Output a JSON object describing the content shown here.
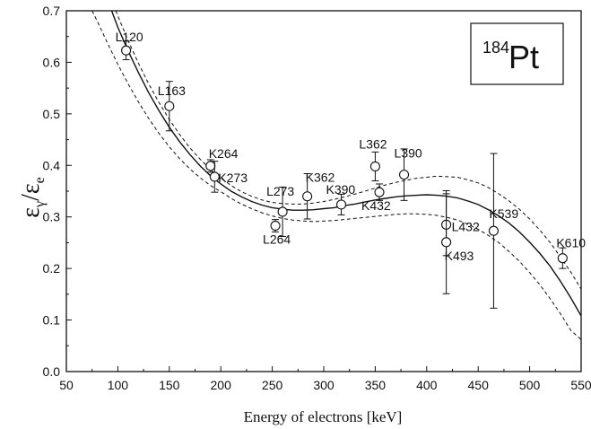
{
  "chart_data": {
    "type": "scatter",
    "xlabel": "Energy of electrons [keV]",
    "ylabel": {
      "main": "ε",
      "sub1": "γ",
      "sep": "/",
      "main2": "ε",
      "sub2": "e"
    },
    "xlim": [
      50,
      550
    ],
    "ylim": [
      0.0,
      0.7
    ],
    "xticks": [
      "50",
      "100",
      "150",
      "200",
      "250",
      "300",
      "350",
      "400",
      "450",
      "500",
      "550"
    ],
    "yticks": [
      "0.0",
      "0.1",
      "0.2",
      "0.3",
      "0.4",
      "0.5",
      "0.6",
      "0.7"
    ],
    "grid": false,
    "annotation": {
      "mass": "184",
      "element": "Pt"
    },
    "points": [
      {
        "label": "L120",
        "x": 108,
        "y": 0.623,
        "err": 0.018
      },
      {
        "label": "L163",
        "x": 150,
        "y": 0.515,
        "err": 0.048
      },
      {
        "label": "K264",
        "x": 190,
        "y": 0.399,
        "err": 0.012
      },
      {
        "label": "K273",
        "x": 194,
        "y": 0.378,
        "err": 0.03
      },
      {
        "label": "L264",
        "x": 253,
        "y": 0.283,
        "err": 0.012
      },
      {
        "label": "L273",
        "x": 260,
        "y": 0.31,
        "err": 0.048
      },
      {
        "label": "K362",
        "x": 284,
        "y": 0.34,
        "err": 0.044
      },
      {
        "label": "K390",
        "x": 317,
        "y": 0.324,
        "err": 0.02
      },
      {
        "label": "L362",
        "x": 350,
        "y": 0.398,
        "err": 0.028
      },
      {
        "label": "K432",
        "x": 354,
        "y": 0.348,
        "err": 0.016
      },
      {
        "label": "L390",
        "x": 378,
        "y": 0.382,
        "err": 0.05
      },
      {
        "label": "L432",
        "x": 419,
        "y": 0.285,
        "err": 0.06
      },
      {
        "label": "K493",
        "x": 419,
        "y": 0.251,
        "err": 0.1
      },
      {
        "label": "K539",
        "x": 465,
        "y": 0.273,
        "err": 0.15
      },
      {
        "label": "K610",
        "x": 532,
        "y": 0.22,
        "err": 0.02
      }
    ],
    "fit_curves": [
      {
        "style": "solid",
        "x": [
          94,
          100,
          110,
          120,
          130,
          140,
          150,
          160,
          170,
          180,
          190,
          200,
          210,
          220,
          230,
          240,
          250,
          260,
          270,
          280,
          290,
          300,
          310,
          320,
          330,
          340,
          350,
          360,
          370,
          380,
          390,
          400,
          410,
          420,
          430,
          440,
          450,
          460,
          470,
          480,
          490,
          500,
          510,
          520,
          530,
          540,
          550
        ],
        "y": [
          0.7,
          0.668,
          0.622,
          0.58,
          0.541,
          0.506,
          0.474,
          0.446,
          0.421,
          0.399,
          0.38,
          0.364,
          0.35,
          0.339,
          0.33,
          0.323,
          0.318,
          0.315,
          0.313,
          0.313,
          0.314,
          0.316,
          0.318,
          0.322,
          0.325,
          0.329,
          0.333,
          0.336,
          0.339,
          0.341,
          0.342,
          0.343,
          0.342,
          0.34,
          0.337,
          0.331,
          0.324,
          0.314,
          0.302,
          0.288,
          0.271,
          0.251,
          0.229,
          0.204,
          0.175,
          0.143,
          0.108
        ]
      },
      {
        "style": "dashed",
        "x": [
          98,
          100,
          110,
          120,
          130,
          140,
          150,
          160,
          170,
          180,
          190,
          200,
          210,
          220,
          230,
          240,
          250,
          260,
          270,
          280,
          290,
          300,
          310,
          320,
          330,
          340,
          350,
          360,
          370,
          380,
          390,
          400,
          410,
          420,
          430,
          440,
          450,
          460,
          470,
          480,
          490,
          500,
          510,
          520,
          530,
          540,
          550
        ],
        "y": [
          0.7,
          0.69,
          0.642,
          0.598,
          0.558,
          0.522,
          0.489,
          0.46,
          0.434,
          0.412,
          0.392,
          0.375,
          0.361,
          0.349,
          0.34,
          0.333,
          0.328,
          0.326,
          0.325,
          0.325,
          0.327,
          0.33,
          0.334,
          0.339,
          0.344,
          0.35,
          0.356,
          0.362,
          0.367,
          0.371,
          0.375,
          0.377,
          0.379,
          0.378,
          0.377,
          0.372,
          0.366,
          0.357,
          0.345,
          0.331,
          0.315,
          0.296,
          0.274,
          0.25,
          0.222,
          0.193,
          0.16
        ]
      },
      {
        "style": "dashed",
        "x": [
          75,
          80,
          90,
          100,
          110,
          120,
          130,
          140,
          150,
          160,
          170,
          180,
          190,
          200,
          210,
          220,
          230,
          240,
          250,
          260,
          270,
          280,
          290,
          300,
          310,
          320,
          330,
          340,
          350,
          360,
          370,
          380,
          390,
          400,
          410,
          420,
          430,
          440,
          450,
          460,
          470,
          480,
          490,
          500,
          510,
          520,
          530,
          540,
          550
        ],
        "y": [
          0.7,
          0.68,
          0.637,
          0.596,
          0.558,
          0.523,
          0.491,
          0.462,
          0.436,
          0.413,
          0.393,
          0.376,
          0.361,
          0.349,
          0.336,
          0.325,
          0.316,
          0.308,
          0.302,
          0.297,
          0.294,
          0.292,
          0.291,
          0.292,
          0.293,
          0.295,
          0.297,
          0.299,
          0.301,
          0.303,
          0.305,
          0.306,
          0.306,
          0.305,
          0.303,
          0.299,
          0.294,
          0.286,
          0.276,
          0.264,
          0.25,
          0.233,
          0.214,
          0.192,
          0.168,
          0.141,
          0.112,
          0.08,
          0.062
        ]
      }
    ]
  }
}
